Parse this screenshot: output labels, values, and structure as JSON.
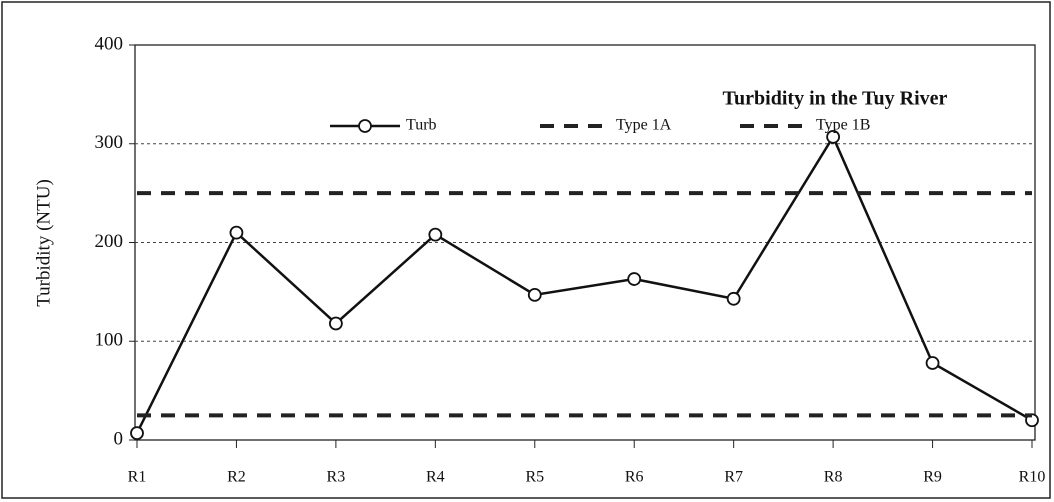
{
  "chart_data": {
    "type": "line",
    "title": "Turbidity in the Tuy River",
    "y_label": "Turbidity  (NTU)",
    "categories": [
      "R1",
      "R2",
      "R3",
      "R4",
      "R5",
      "R6",
      "R7",
      "R8",
      "R9",
      "R10"
    ],
    "series": [
      {
        "name": "Turb",
        "color": "#111111",
        "dash": "solid",
        "marker": "circle",
        "values": [
          7,
          210,
          118,
          208,
          147,
          163,
          143,
          307,
          78,
          20
        ]
      },
      {
        "name": "Type 1A",
        "color": "#222222",
        "dash": "dashed",
        "values": [
          25,
          25,
          25,
          25,
          25,
          25,
          25,
          25,
          25,
          25
        ]
      },
      {
        "name": "Type 1B",
        "color": "#222222",
        "dash": "dashed",
        "values": [
          250,
          250,
          250,
          250,
          250,
          250,
          250,
          250,
          250,
          250
        ]
      }
    ],
    "ylim": [
      0,
      400
    ],
    "yticks": [
      0,
      100,
      200,
      300,
      400
    ],
    "grid": true
  }
}
